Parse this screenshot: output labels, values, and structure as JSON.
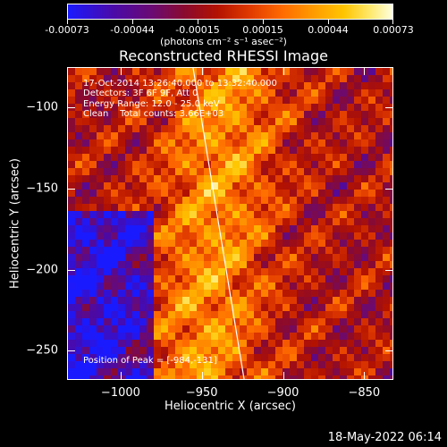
{
  "colorbar": {
    "tick_labels": [
      "-0.00073",
      "-0.00044",
      "-0.00015",
      "0.00015",
      "0.00044",
      "0.00073"
    ],
    "units": "(photons cm⁻² s⁻¹ asec⁻²)"
  },
  "title": "Reconstructed RHESSI Image",
  "annotations": {
    "time_range": "17-Oct-2014 13:26:40.000 to 13:32:40.000",
    "detectors": "Detectors: 3F 6F 9F, Att 0",
    "energy": "Energy Range: 12.0 - 25.0 keV",
    "method": "Clean    Total counts: 3.66E+03",
    "peak": "Position of Peak = [-984,-131]"
  },
  "axes": {
    "xlabel": "Heliocentric X (arcsec)",
    "ylabel": "Heliocentric Y (arcsec)",
    "x_ticks": [
      "-1000",
      "-950",
      "-900",
      "-850"
    ],
    "y_ticks": [
      "-100",
      "-150",
      "-200",
      "-250"
    ],
    "x_range": [
      -1033,
      -832
    ],
    "y_range": [
      -268,
      -75
    ]
  },
  "footer_date": "18-May-2022 06:14",
  "colors": {
    "background": "#000000",
    "colormap": [
      "#1a1aff",
      "#6b0a72",
      "#b31200",
      "#ff6a00",
      "#ffc500",
      "#ffffe0"
    ]
  }
}
